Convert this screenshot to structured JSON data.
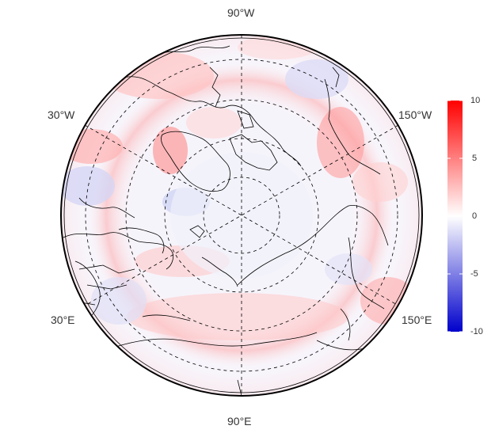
{
  "map": {
    "projection": "north polar stereographic",
    "longitude_labels": [
      {
        "id": "lon-90w",
        "text": "90°W"
      },
      {
        "id": "lon-30w",
        "text": "30°W"
      },
      {
        "id": "lon-150w",
        "text": "150°W"
      },
      {
        "id": "lon-30e",
        "text": "30°E"
      },
      {
        "id": "lon-150e",
        "text": "150°E"
      },
      {
        "id": "lon-90e",
        "text": "90°E"
      }
    ]
  },
  "colorbar": {
    "min": -10,
    "max": 10,
    "ticks": [
      "10",
      "5",
      "0",
      "-5",
      "-10"
    ],
    "colors": {
      "low": "#0000cc",
      "mid": "#ffffff",
      "high": "#ff0000"
    }
  }
}
